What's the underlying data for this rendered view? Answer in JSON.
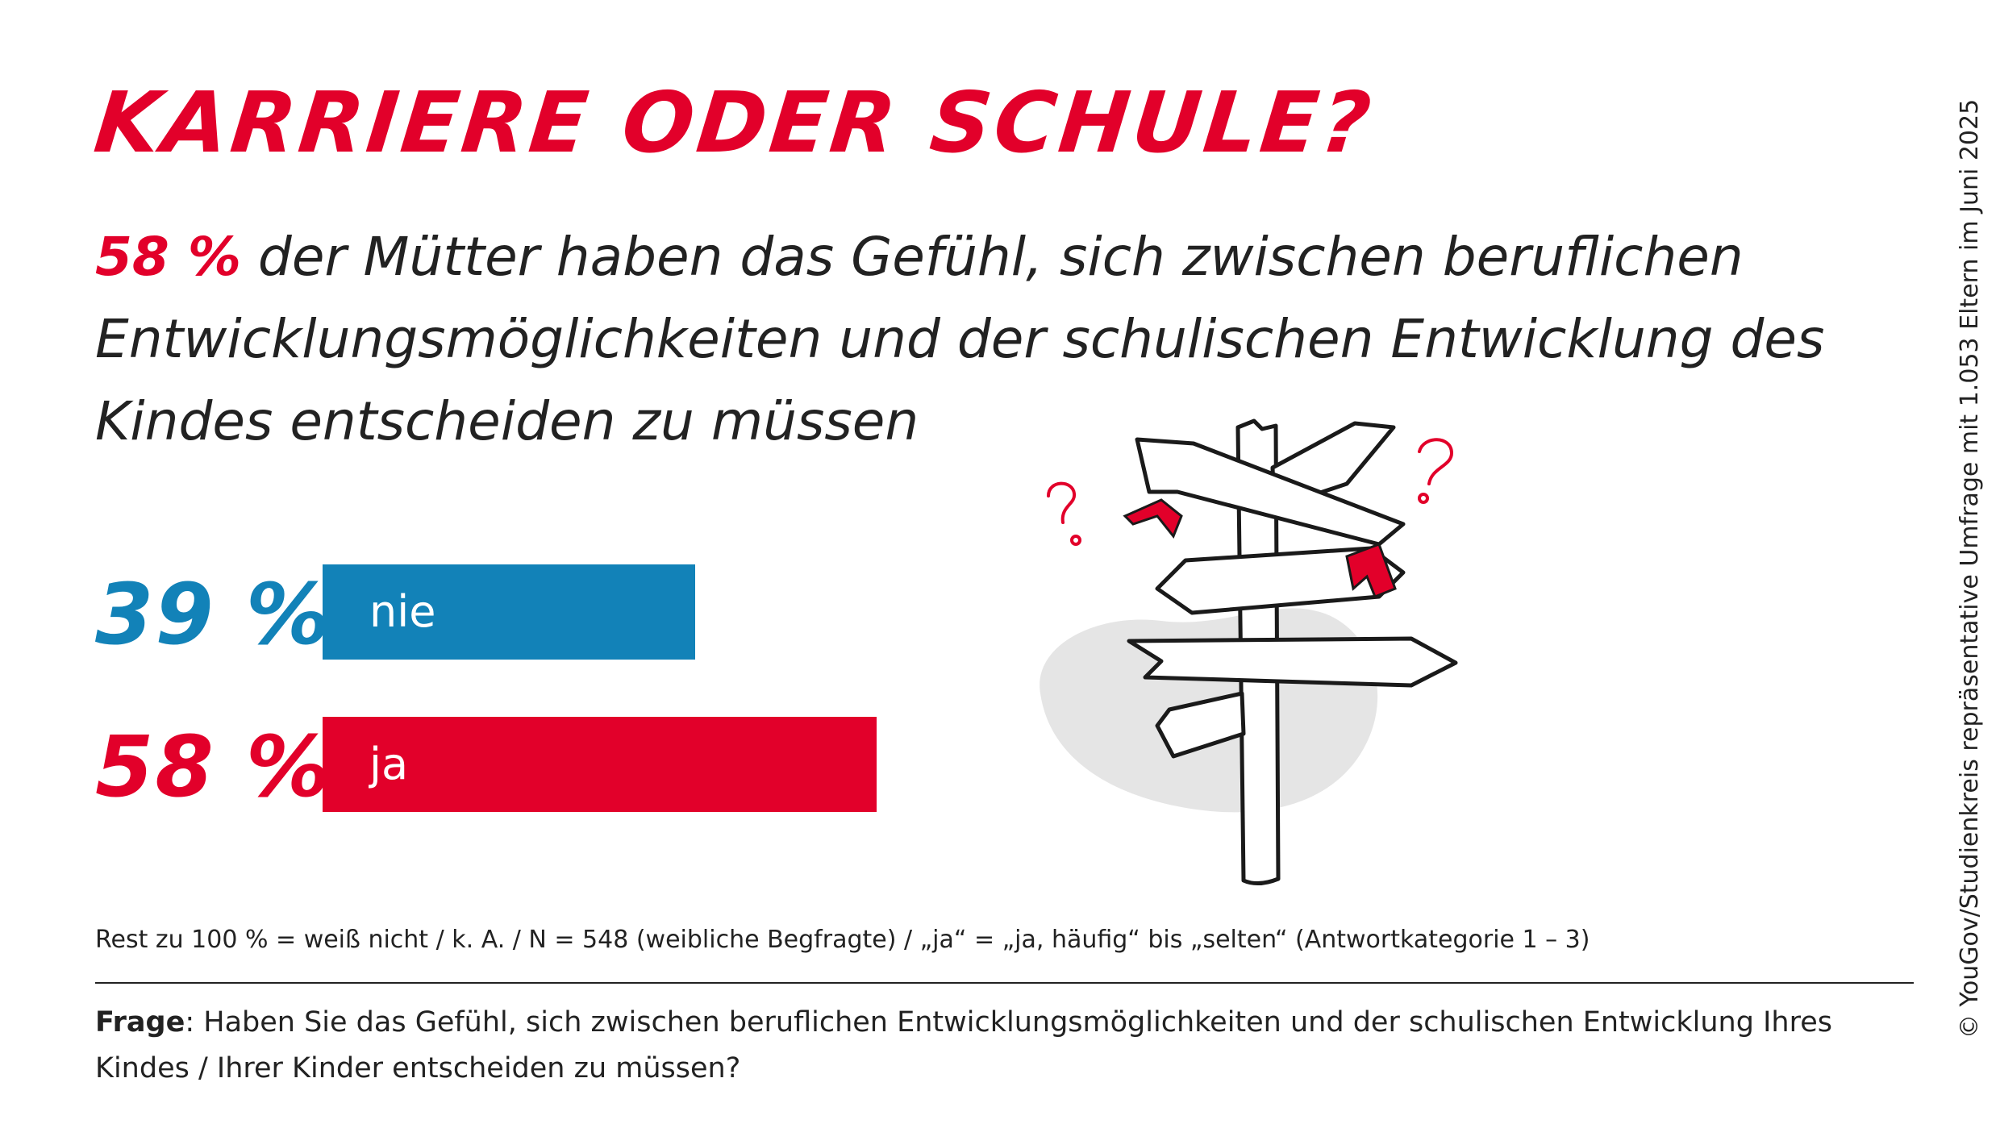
{
  "header": {
    "title": "KARRIERE ODER SCHULE?",
    "subtitle_highlight": "58 %",
    "subtitle_rest": " der Mütter haben das Gefühl, sich zwischen beruflichen Entwicklungsmöglichkeiten und der schulischen Entwicklung des Kindes entscheiden zu müssen"
  },
  "chart_data": {
    "type": "bar",
    "orientation": "horizontal",
    "unit": "%",
    "xlim": [
      0,
      100
    ],
    "categories": [
      "nie",
      "ja"
    ],
    "values": [
      39,
      58
    ],
    "value_labels": [
      "39 %",
      "58 %"
    ],
    "colors": [
      "#1282b8",
      "#e2002a"
    ],
    "grid": false
  },
  "footer": {
    "note": "Rest zu 100 % = weiß nicht / k. A. / N = 548 (weibliche Begfragte) / „ja“ = „ja, häufig“ bis „selten“ (Antwortkategorie 1 – 3)",
    "question_label": "Frage",
    "question_text": ": Haben Sie das Gefühl, sich zwischen beruflichen Entwicklungsmöglichkeiten und der schulischen Entwicklung Ihres Kindes / Ihrer Kinder entscheiden zu müssen?"
  },
  "credit": "© YouGov/Studienkreis repräsentative Umfrage mit 1.053 Eltern im Juni 2025",
  "illustration": {
    "icon": "signpost-icon",
    "question_marks": 2
  }
}
